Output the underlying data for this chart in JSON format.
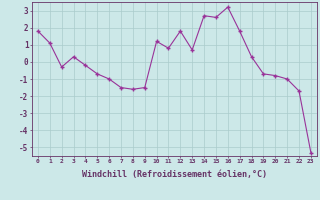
{
  "xlabel": "Windchill (Refroidissement éolien,°C)",
  "x_values": [
    0,
    1,
    2,
    3,
    4,
    5,
    6,
    7,
    8,
    9,
    10,
    11,
    12,
    13,
    14,
    15,
    16,
    17,
    18,
    19,
    20,
    21,
    22,
    23
  ],
  "y_values": [
    1.8,
    1.1,
    -0.3,
    0.3,
    -0.2,
    -0.7,
    -1.0,
    -1.5,
    -1.6,
    -1.5,
    1.2,
    0.8,
    1.8,
    0.7,
    2.7,
    2.6,
    3.2,
    1.8,
    0.3,
    -0.7,
    -0.8,
    -1.0,
    -1.7,
    -5.3
  ],
  "line_color": "#993399",
  "marker_color": "#993399",
  "bg_color": "#cce8e8",
  "grid_color": "#aacccc",
  "axis_color": "#663366",
  "tick_color": "#663366",
  "ylim": [
    -5.5,
    3.5
  ],
  "yticks": [
    -5,
    -4,
    -3,
    -2,
    -1,
    0,
    1,
    2,
    3
  ],
  "xlim": [
    -0.5,
    23.5
  ],
  "xlabel_fontsize": 6.0,
  "xtick_fontsize": 4.5,
  "ytick_fontsize": 5.5
}
